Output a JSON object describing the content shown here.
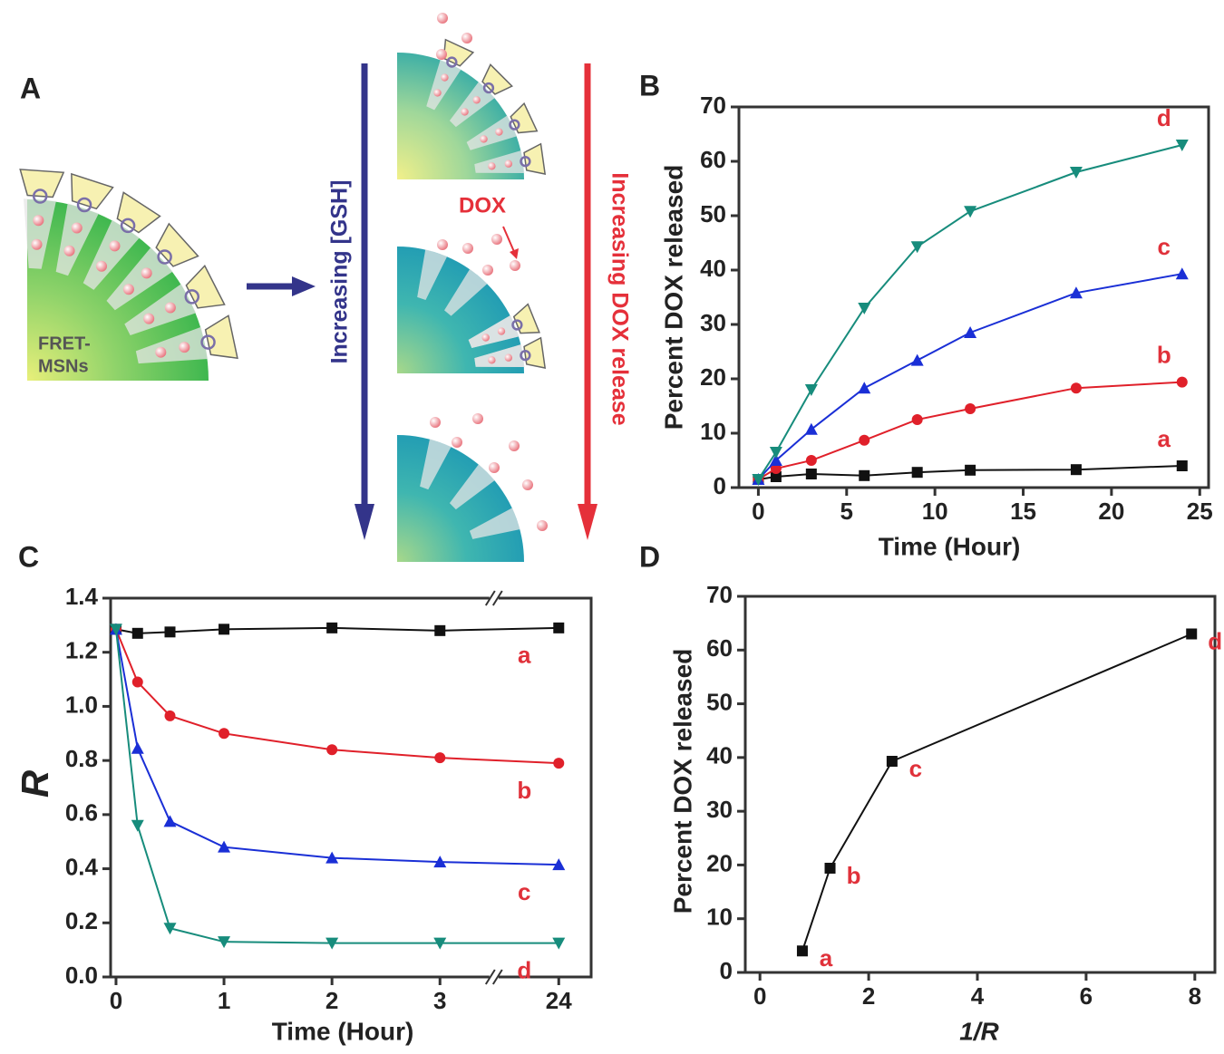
{
  "diagram": {
    "panel": "A",
    "particle_label": [
      "FRET-",
      "MSNs"
    ],
    "gsh_arrow": "Increasing [GSH]",
    "dox_label": "DOX",
    "release_arrow": "Increasing DOX release"
  },
  "chart_data": [
    {
      "type": "line",
      "panel": "B",
      "xlabel": "Time (Hour)",
      "ylabel": "Percent DOX released",
      "x": [
        0,
        1,
        3,
        6,
        9,
        12,
        18,
        24
      ],
      "xlim": [
        -1.1,
        25.5
      ],
      "xticks": [
        0,
        5,
        10,
        15,
        20,
        25
      ],
      "ylim": [
        0,
        70
      ],
      "yticks": [
        0,
        10,
        20,
        30,
        40,
        50,
        60,
        70
      ],
      "series": [
        {
          "name": "a",
          "color": "#111111",
          "marker": "square",
          "values": [
            1.5,
            2,
            2.5,
            2.2,
            2.8,
            3.2,
            3.3,
            4
          ]
        },
        {
          "name": "b",
          "color": "#e0202a",
          "marker": "circle",
          "values": [
            1.5,
            3.5,
            5,
            8.7,
            12.5,
            14.5,
            18.3,
            19.4
          ]
        },
        {
          "name": "c",
          "color": "#1a2fd6",
          "marker": "triangle",
          "values": [
            1.5,
            5,
            10.7,
            18.3,
            23.4,
            28.5,
            35.8,
            39.3
          ]
        },
        {
          "name": "d",
          "color": "#178c7c",
          "marker": "triangle-down",
          "values": [
            1.5,
            6.5,
            18,
            33,
            44.3,
            50.8,
            58,
            63
          ]
        }
      ]
    },
    {
      "type": "line",
      "panel": "C",
      "xlabel": "Time (Hour)",
      "ylabel": "R",
      "x": [
        0,
        0.2,
        0.5,
        1,
        2,
        3,
        24
      ],
      "xlim": [
        -0.05,
        24.3
      ],
      "xbreak": [
        3.5,
        23.4
      ],
      "xticks": [
        0,
        1,
        2,
        3,
        24
      ],
      "ylim": [
        0,
        1.4
      ],
      "yticks": [
        {
          "value": 0,
          "label": "0.0"
        },
        0.2,
        0.4,
        0.6,
        0.8,
        {
          "value": 1,
          "label": "1.0"
        },
        1.2,
        1.4
      ],
      "series": [
        {
          "name": "a",
          "color": "#111111",
          "marker": "square",
          "values": [
            1.285,
            1.27,
            1.275,
            1.285,
            1.29,
            1.28,
            1.29
          ]
        },
        {
          "name": "b",
          "color": "#e0202a",
          "marker": "circle",
          "values": [
            1.285,
            1.09,
            0.965,
            0.9,
            0.84,
            0.81,
            0.79
          ]
        },
        {
          "name": "c",
          "color": "#1a2fd6",
          "marker": "triangle",
          "values": [
            1.285,
            0.845,
            0.575,
            0.48,
            0.44,
            0.425,
            0.415
          ]
        },
        {
          "name": "d",
          "color": "#178c7c",
          "marker": "triangle-down",
          "values": [
            1.285,
            0.56,
            0.18,
            0.13,
            0.125,
            0.125,
            0.125
          ]
        }
      ]
    },
    {
      "type": "line",
      "panel": "D",
      "xlabel": "1/R",
      "ylabel": "Percent DOX released",
      "x": [
        0.78,
        1.29,
        2.43,
        7.94
      ],
      "xlim": [
        -0.27,
        8.37
      ],
      "xticks": [
        0,
        2,
        4,
        6,
        8
      ],
      "ylim": [
        0,
        70
      ],
      "yticks": [
        0,
        10,
        20,
        30,
        40,
        50,
        60,
        70
      ],
      "point_labels": [
        "a",
        "b",
        "c",
        "d"
      ],
      "series": [
        {
          "color": "#111111",
          "marker": "square",
          "values": [
            4,
            19.4,
            39.3,
            63
          ]
        }
      ]
    }
  ]
}
